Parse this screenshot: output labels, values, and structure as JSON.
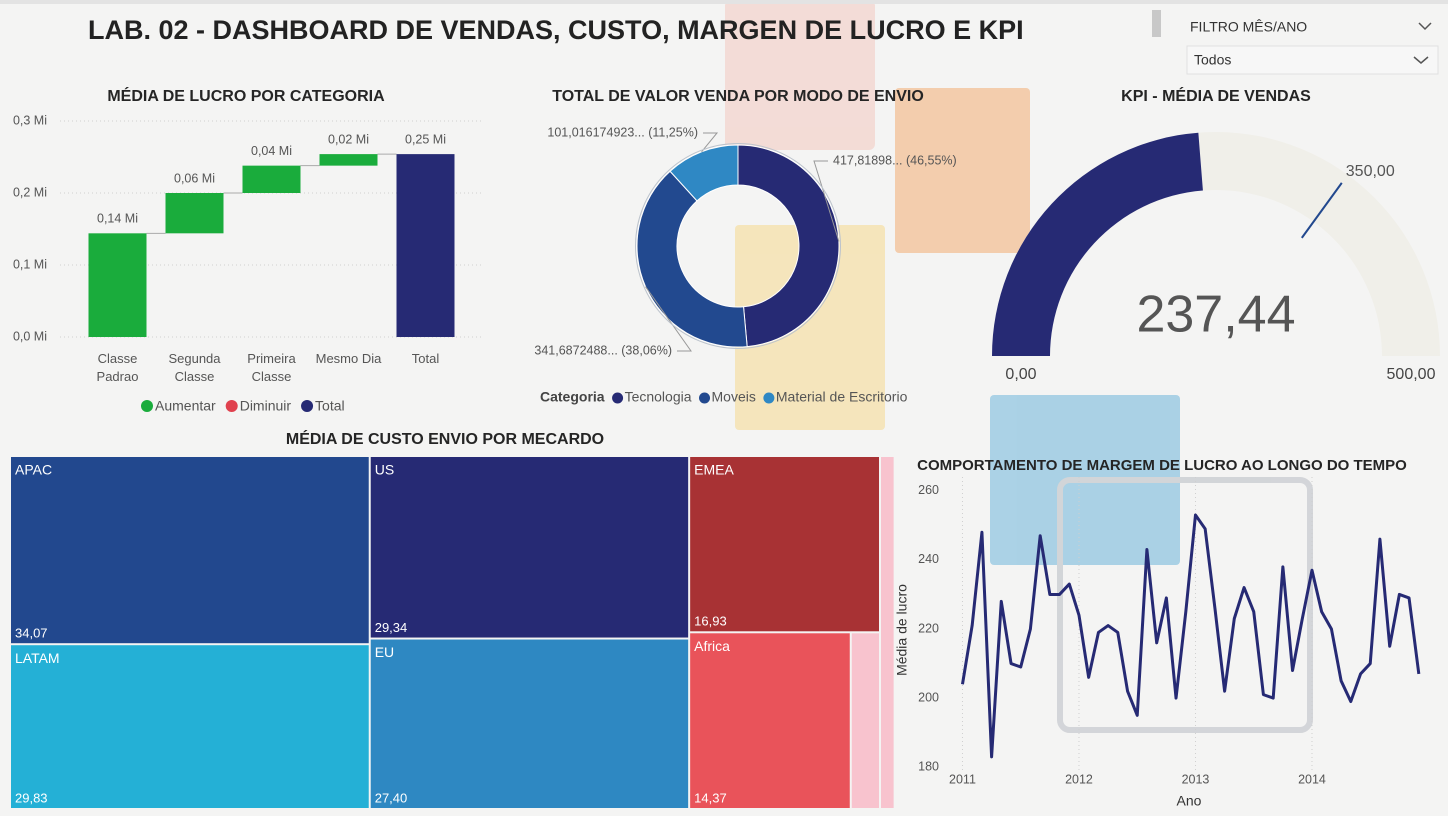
{
  "header": {
    "title": "LAB. 02 - DASHBOARD DE VENDAS, CUSTO, MARGEN DE LUCRO E KPI",
    "filter_label": "FILTRO MÊS/ANO",
    "filter_value": "Todos"
  },
  "chart_data": [
    {
      "type": "waterfall",
      "title": "MÉDIA DE LUCRO POR CATEGORIA",
      "categories": [
        "Classe Padrao",
        "Segunda Classe",
        "Primeira Classe",
        "Mesmo Dia",
        "Total"
      ],
      "values": [
        0.144,
        0.056,
        0.038,
        0.016,
        0.254
      ],
      "value_labels": [
        "0,14 Mi",
        "0,06 Mi",
        "0,04 Mi",
        "0,02 Mi",
        "0,25 Mi"
      ],
      "ylim": [
        0,
        0.3
      ],
      "yticks": [
        {
          "value": 0,
          "label": "0,0 Mi"
        },
        {
          "value": 0.1,
          "label": "0,1 Mi"
        },
        {
          "value": 0.2,
          "label": "0,2 Mi"
        },
        {
          "value": 0.3,
          "label": "0,3 Mi"
        }
      ],
      "grid": true,
      "legend": [
        {
          "name": "Aumentar",
          "color": "#1aac3c"
        },
        {
          "name": "Diminuir",
          "color": "#e0414e"
        },
        {
          "name": "Total",
          "color": "#262a74"
        }
      ]
    },
    {
      "type": "donut",
      "title": "TOTAL DE VALOR VENDA POR MODO DE ENVIO",
      "legend_title": "Categoria",
      "categories": [
        "Tecnologia",
        "Moveis",
        "Material de Escritorio"
      ],
      "values": [
        417.81898,
        341.6872488,
        101.016174923
      ],
      "value_labels": [
        "417,81898... (46,55%)",
        "341,6872488... (38,06%)",
        "101,016174923... (11,25%)"
      ],
      "colors": [
        "#262a74",
        "#22498f",
        "#2f88c4"
      ]
    },
    {
      "type": "gauge",
      "title": "KPI - MÉDIA DE VENDAS",
      "value": 237.44,
      "value_label": "237,44",
      "ylim": [
        0,
        500
      ],
      "yticks": [
        {
          "value": 0,
          "label": "0,00"
        },
        {
          "value": 500,
          "label": "500,00"
        }
      ],
      "target": {
        "value": 350,
        "label": "350,00"
      },
      "color": "#262a74",
      "track_color": "#f0efe9"
    },
    {
      "type": "treemap",
      "title": "MÉDIA DE CUSTO ENVIO POR MECARDO",
      "categories": [
        "APAC",
        "LATAM",
        "US",
        "EU",
        "EMEA",
        "Africa",
        null
      ],
      "values": [
        34.07,
        29.83,
        29.34,
        27.4,
        16.93,
        14.37,
        2.6
      ],
      "value_labels": [
        "34,07",
        "29,83",
        "29,34",
        "27,40",
        "16,93",
        "14,37",
        null
      ],
      "colors": [
        "#22488e",
        "#24b0d6",
        "#262a74",
        "#2e88c2",
        "#a83234",
        "#e9535a",
        "#f8c3ce"
      ]
    },
    {
      "type": "line",
      "title": "COMPORTAMENTO DE MARGEM DE LUCRO AO LONGO DO TEMPO",
      "xlabel": "Ano",
      "ylabel": "Média de lucro",
      "color": "#262a74",
      "x": [
        2011,
        2011.083,
        2011.167,
        2011.25,
        2011.333,
        2011.417,
        2011.5,
        2011.583,
        2011.667,
        2011.75,
        2011.833,
        2011.917,
        2012,
        2012.083,
        2012.167,
        2012.25,
        2012.333,
        2012.417,
        2012.5,
        2012.583,
        2012.667,
        2012.75,
        2012.833,
        2012.917,
        2013,
        2013.083,
        2013.167,
        2013.25,
        2013.333,
        2013.417,
        2013.5,
        2013.583,
        2013.667,
        2013.75,
        2013.833,
        2013.917,
        2014,
        2014.083,
        2014.167,
        2014.25,
        2014.333,
        2014.417,
        2014.5,
        2014.583,
        2014.667,
        2014.75,
        2014.833,
        2014.917
      ],
      "values": [
        204,
        221,
        248,
        183,
        228,
        210,
        209,
        220,
        247,
        230,
        230,
        233,
        224,
        206,
        219,
        221,
        219,
        202,
        195,
        243,
        216,
        229,
        200,
        225,
        253,
        249,
        226,
        202,
        223,
        232,
        225,
        201,
        200,
        238,
        208,
        223,
        237,
        225,
        220,
        205,
        199,
        207,
        210,
        246,
        215,
        230,
        229,
        207
      ],
      "xlim": [
        2010.85,
        2014.97
      ],
      "xticks": [
        2011,
        2012,
        2013,
        2014
      ],
      "ylim": [
        176,
        264
      ],
      "yticks": [
        180,
        200,
        220,
        240,
        260
      ],
      "grid": true
    }
  ]
}
